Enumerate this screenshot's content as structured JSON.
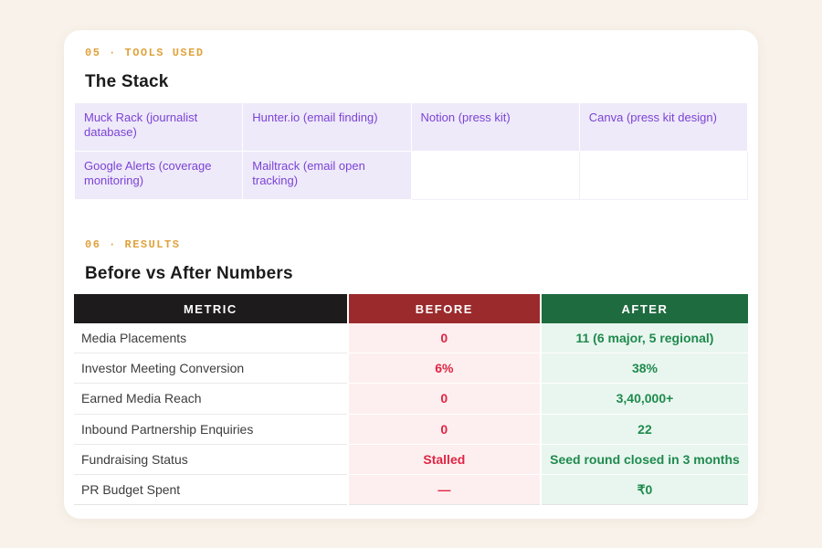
{
  "tools": {
    "label": "05 · TOOLS USED",
    "title": "The Stack",
    "rows": [
      [
        "Muck Rack (journalist database)",
        "Hunter.io (email finding)",
        "Notion (press kit)",
        "Canva (press kit design)"
      ],
      [
        "Google Alerts (coverage monitoring)",
        "Mailtrack (email open tracking)",
        "",
        ""
      ]
    ]
  },
  "results": {
    "label": "06 · RESULTS",
    "title": "Before vs After Numbers",
    "headers": [
      "METRIC",
      "BEFORE",
      "AFTER"
    ],
    "rows": [
      {
        "metric": "Media Placements",
        "before": "0",
        "after": "11 (6 major, 5 regional)"
      },
      {
        "metric": "Investor Meeting Conversion",
        "before": "6%",
        "after": "38%"
      },
      {
        "metric": "Earned Media Reach",
        "before": "0",
        "after": "3,40,000+"
      },
      {
        "metric": "Inbound Partnership Enquiries",
        "before": "0",
        "after": "22"
      },
      {
        "metric": "Fundraising Status",
        "before": "Stalled",
        "after": "Seed round closed in 3 months"
      },
      {
        "metric": "PR Budget Spent",
        "before": "—",
        "after": "₹0"
      }
    ]
  },
  "colors": {
    "page_background": "#f8f2ea",
    "card_background": "#ffffff",
    "section_label_amber": "#e0a23c",
    "tool_cell_background": "#eeeaf9",
    "tool_text_purple": "#7b42d6",
    "header_metric_black": "#1d1b1b",
    "header_before_red": "#9b2a2c",
    "header_after_green": "#1f6b40",
    "before_cell_background": "#fdefef",
    "before_text_red": "#e02444",
    "after_cell_background": "#e9f6ef",
    "after_text_green": "#1e8a4d"
  }
}
